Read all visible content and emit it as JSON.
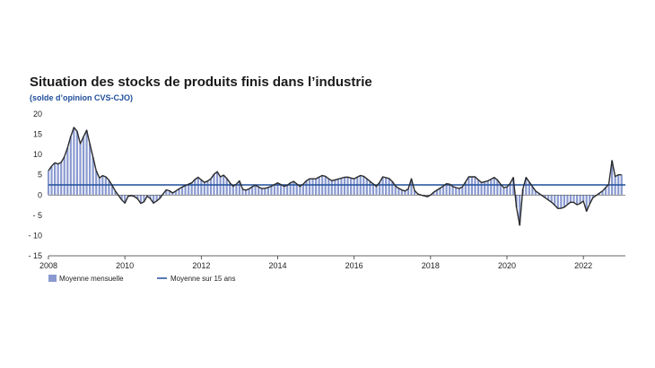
{
  "chart_data": {
    "type": "bar",
    "title": "Situation des stocks de produits finis dans l’industrie",
    "subtitle": "(solde d’opinion CVS-CJO)",
    "xlabel": "",
    "ylabel": "",
    "x_range": [
      2008,
      2023.1
    ],
    "ylim": [
      -15,
      20
    ],
    "y_ticks": [
      "20",
      "15",
      "10",
      "5",
      "0",
      "- 5",
      "- 10",
      "- 15"
    ],
    "y_tick_values": [
      20,
      15,
      10,
      5,
      0,
      -5,
      -10,
      -15
    ],
    "x_ticks": [
      "2008",
      "2010",
      "2012",
      "2014",
      "2016",
      "2018",
      "2020",
      "2022"
    ],
    "x_tick_values": [
      2008,
      2010,
      2012,
      2014,
      2016,
      2018,
      2020,
      2022
    ],
    "grid": false,
    "legend_position": "bottom-left",
    "bar_color": "#8a9ad0",
    "line_color": "#2b2b2b",
    "average_color": "#1f4e9a",
    "series": [
      {
        "name": "Moyenne mensuelle",
        "kind": "bar+line",
        "monthly_keypoints": [
          [
            2008.0,
            6
          ],
          [
            2008.15,
            8
          ],
          [
            2008.3,
            7.5
          ],
          [
            2008.45,
            10
          ],
          [
            2008.6,
            15
          ],
          [
            2008.72,
            18
          ],
          [
            2008.8,
            12
          ],
          [
            2008.9,
            14
          ],
          [
            2009.0,
            16
          ],
          [
            2009.1,
            12
          ],
          [
            2009.2,
            8
          ],
          [
            2009.3,
            4
          ],
          [
            2009.45,
            5
          ],
          [
            2009.6,
            3.5
          ],
          [
            2009.75,
            1
          ],
          [
            2009.9,
            -1
          ],
          [
            2010.0,
            -2
          ],
          [
            2010.1,
            0
          ],
          [
            2010.3,
            -0.5
          ],
          [
            2010.45,
            -2.5
          ],
          [
            2010.6,
            0
          ],
          [
            2010.75,
            -2
          ],
          [
            2010.9,
            -1
          ],
          [
            2011.1,
            1.5
          ],
          [
            2011.25,
            0.5
          ],
          [
            2011.5,
            2
          ],
          [
            2011.75,
            3
          ],
          [
            2011.9,
            4.5
          ],
          [
            2012.1,
            3
          ],
          [
            2012.25,
            4
          ],
          [
            2012.4,
            6
          ],
          [
            2012.5,
            4.5
          ],
          [
            2012.6,
            5
          ],
          [
            2012.75,
            3
          ],
          [
            2012.85,
            2
          ],
          [
            2013.0,
            3.5
          ],
          [
            2013.1,
            1
          ],
          [
            2013.25,
            1.5
          ],
          [
            2013.4,
            2.5
          ],
          [
            2013.6,
            1.5
          ],
          [
            2013.8,
            2
          ],
          [
            2014.0,
            3
          ],
          [
            2014.2,
            2
          ],
          [
            2014.4,
            3.5
          ],
          [
            2014.6,
            2
          ],
          [
            2014.8,
            4
          ],
          [
            2015.0,
            4
          ],
          [
            2015.2,
            5
          ],
          [
            2015.4,
            3.5
          ],
          [
            2015.6,
            4
          ],
          [
            2015.8,
            4.5
          ],
          [
            2016.0,
            4
          ],
          [
            2016.2,
            5
          ],
          [
            2016.4,
            3.5
          ],
          [
            2016.6,
            2
          ],
          [
            2016.75,
            4.5
          ],
          [
            2016.95,
            4
          ],
          [
            2017.1,
            2
          ],
          [
            2017.3,
            1
          ],
          [
            2017.4,
            1
          ],
          [
            2017.5,
            4
          ],
          [
            2017.6,
            0.5
          ],
          [
            2017.75,
            0
          ],
          [
            2017.95,
            -0.5
          ],
          [
            2018.05,
            0.5
          ],
          [
            2018.3,
            2
          ],
          [
            2018.45,
            3
          ],
          [
            2018.6,
            2
          ],
          [
            2018.8,
            1.5
          ],
          [
            2019.0,
            4.5
          ],
          [
            2019.2,
            4.5
          ],
          [
            2019.3,
            3
          ],
          [
            2019.5,
            3.5
          ],
          [
            2019.7,
            4.5
          ],
          [
            2019.8,
            3
          ],
          [
            2019.95,
            1.5
          ],
          [
            2020.1,
            3
          ],
          [
            2020.2,
            5
          ],
          [
            2020.3,
            -11
          ],
          [
            2020.45,
            5
          ],
          [
            2020.6,
            3
          ],
          [
            2020.75,
            1
          ],
          [
            2020.9,
            0
          ],
          [
            2021.05,
            -1
          ],
          [
            2021.2,
            -2
          ],
          [
            2021.35,
            -3.5
          ],
          [
            2021.5,
            -3
          ],
          [
            2021.7,
            -1.5
          ],
          [
            2021.85,
            -2.5
          ],
          [
            2022.0,
            -1.5
          ],
          [
            2022.1,
            -4.5
          ],
          [
            2022.2,
            -1
          ],
          [
            2022.35,
            0
          ],
          [
            2022.5,
            1
          ],
          [
            2022.6,
            2
          ],
          [
            2022.7,
            3
          ],
          [
            2022.75,
            8.5
          ],
          [
            2022.82,
            4.5
          ],
          [
            2022.9,
            5
          ],
          [
            2023.0,
            5
          ]
        ]
      },
      {
        "name": "Moyenne sur 15 ans",
        "kind": "hline",
        "value": 2.5
      }
    ]
  }
}
